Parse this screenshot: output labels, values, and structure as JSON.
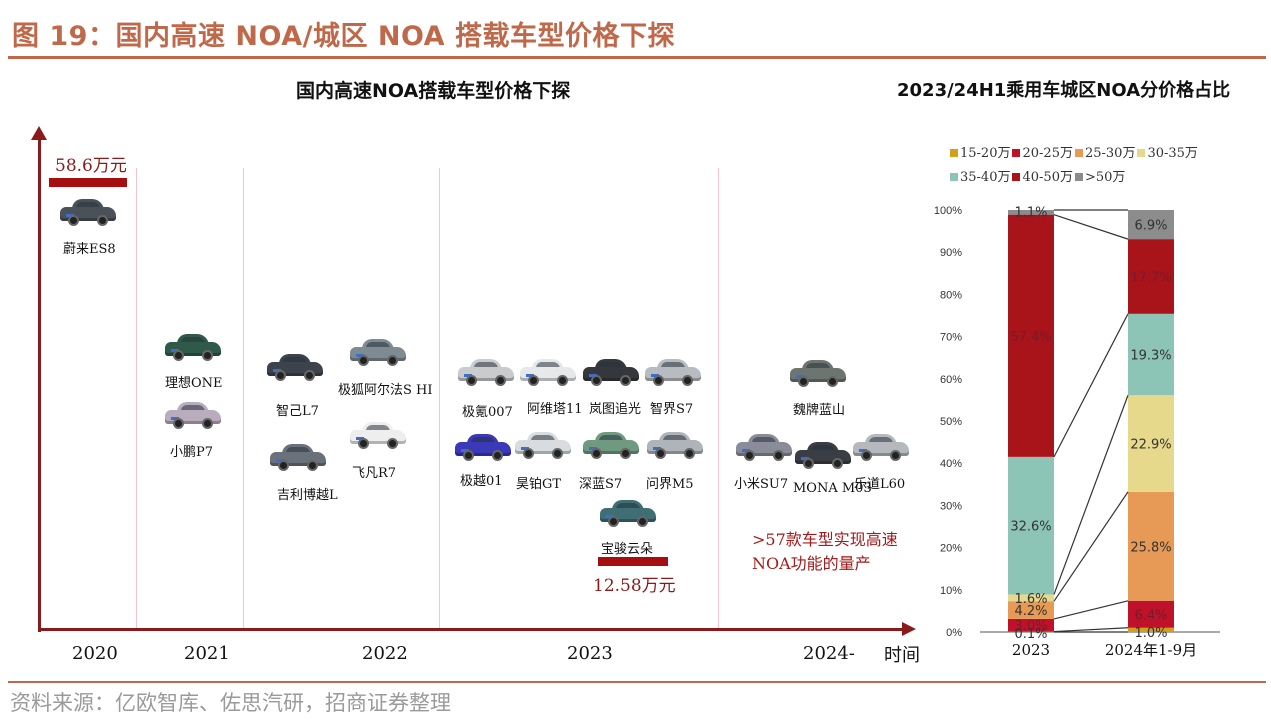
{
  "figure": {
    "title": "图 19：国内高速 NOA/城区 NOA 搭载车型价格下探",
    "source": "资料来源：亿欧智库、佐思汽研，招商证券整理"
  },
  "timeline": {
    "title": "国内高速NOA搭载车型价格下探",
    "x_axis_label": "时间",
    "years": [
      "2020",
      "2021",
      "2022",
      "2023",
      "2024-"
    ],
    "high_price": "58.6万元",
    "low_price": "12.58万元",
    "note_line1": ">57款车型实现高速",
    "note_line2": "NOA功能的量产",
    "cars": [
      {
        "name": "蔚来ES8",
        "year": "2020",
        "color": "#4a5158"
      },
      {
        "name": "理想ONE",
        "year": "2021",
        "color": "#2f5a4a"
      },
      {
        "name": "小鹏P7",
        "year": "2021",
        "color": "#b9acbd"
      },
      {
        "name": "智己L7",
        "year": "2022",
        "color": "#3d434c"
      },
      {
        "name": "极狐阿尔法S HI",
        "year": "2022",
        "color": "#7f8b92"
      },
      {
        "name": "吉利博越L",
        "year": "2022",
        "color": "#6a717a"
      },
      {
        "name": "飞凡R7",
        "year": "2022",
        "color": "#eeeeee"
      },
      {
        "name": "极氪007",
        "year": "2023",
        "color": "#c9cbcd"
      },
      {
        "name": "阿维塔11",
        "year": "2023",
        "color": "#e6e8ea"
      },
      {
        "name": "岚图追光",
        "year": "2023",
        "color": "#34383d"
      },
      {
        "name": "智界S7",
        "year": "2023",
        "color": "#b7bcc1"
      },
      {
        "name": "极越01",
        "year": "2023",
        "color": "#3a39b8"
      },
      {
        "name": "昊铂GT",
        "year": "2023",
        "color": "#d9dcdf"
      },
      {
        "name": "深蓝S7",
        "year": "2023",
        "color": "#6f9a80"
      },
      {
        "name": "问界M5",
        "year": "2023",
        "color": "#aeb4b9"
      },
      {
        "name": "宝骏云朵",
        "year": "2023",
        "color": "#3f6e74"
      },
      {
        "name": "魏牌蓝山",
        "year": "2024-",
        "color": "#6d7570"
      },
      {
        "name": "小米SU7",
        "year": "2024-",
        "color": "#8b8c99"
      },
      {
        "name": "MONA M03",
        "year": "2024-",
        "color": "#3a3d44"
      },
      {
        "name": "乐道L60",
        "year": "2024-",
        "color": "#b5b9bd"
      }
    ]
  },
  "chart_data": {
    "type": "bar",
    "stacked": true,
    "percent": true,
    "title": "2023/24H1乘用车城区NOA分价格占比",
    "categories": [
      "2023",
      "2024年1-9月"
    ],
    "ylim": [
      0,
      100
    ],
    "yticks": [
      "0%",
      "10%",
      "20%",
      "30%",
      "40%",
      "50%",
      "60%",
      "70%",
      "80%",
      "90%",
      "100%"
    ],
    "legend_position": "top",
    "series": [
      {
        "name": "15-20万",
        "color": "#d4a017",
        "values": [
          0.1,
          1.0
        ],
        "labels": [
          "0.1%",
          "1.0%"
        ]
      },
      {
        "name": "20-25万",
        "color": "#c0112a",
        "values": [
          3.0,
          6.4
        ],
        "labels": [
          "3.0%",
          "6.4%"
        ]
      },
      {
        "name": "25-30万",
        "color": "#e69a55",
        "values": [
          4.2,
          25.8
        ],
        "labels": [
          "4.2%",
          "25.8%"
        ]
      },
      {
        "name": "30-35万",
        "color": "#e6d98c",
        "values": [
          1.6,
          22.9
        ],
        "labels": [
          "1.6%",
          "22.9%"
        ]
      },
      {
        "name": "35-40万",
        "color": "#8cc4b6",
        "values": [
          32.6,
          19.3
        ],
        "labels": [
          "32.6%",
          "19.3%"
        ]
      },
      {
        "name": "40-50万",
        "color": "#a8141a",
        "values": [
          57.4,
          17.7
        ],
        "labels": [
          "57.4%",
          "17.7%"
        ]
      },
      {
        "name": ">50万",
        "color": "#8c8c8c",
        "values": [
          1.1,
          6.9
        ],
        "labels": [
          "1.1%",
          "6.9%"
        ]
      }
    ]
  }
}
